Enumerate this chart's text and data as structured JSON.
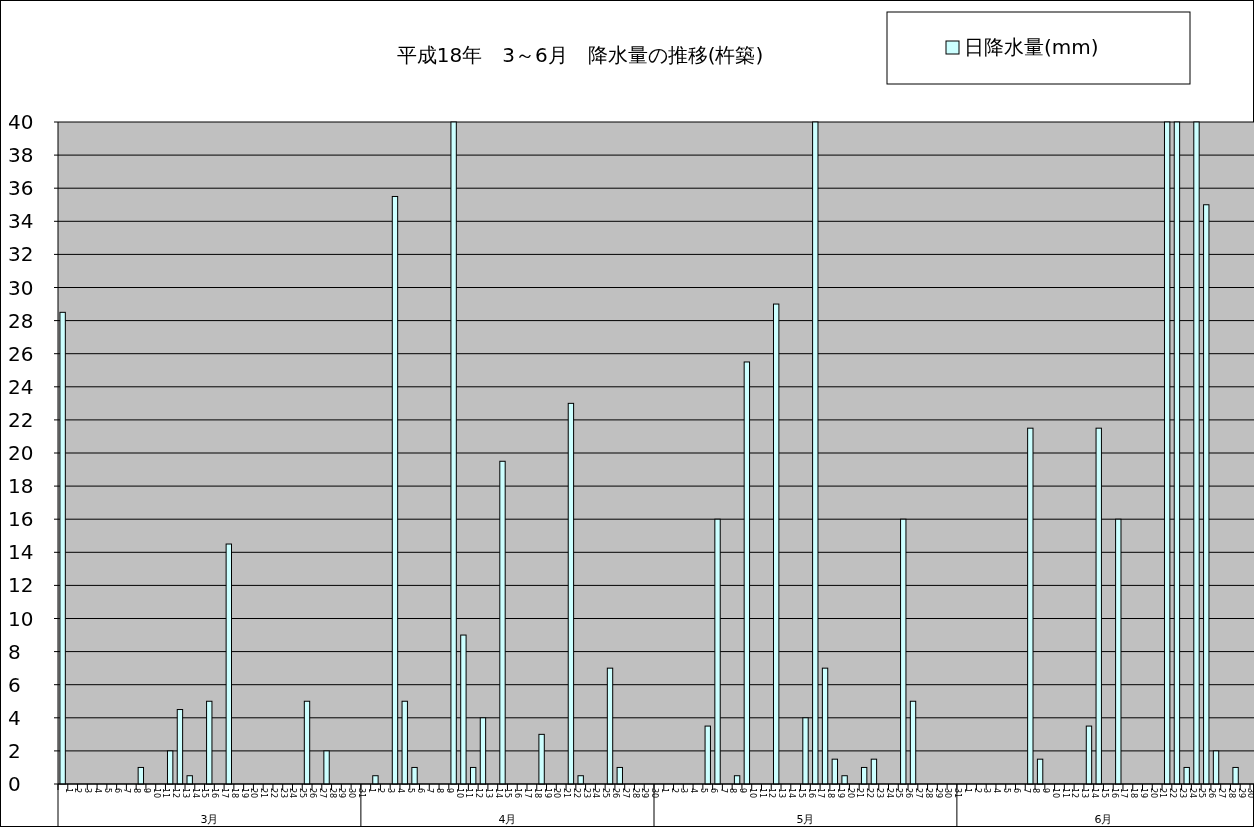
{
  "chart_data": {
    "type": "bar",
    "title": "平成18年　3～6月　降水量の推移(杵築)",
    "categories": [
      "1",
      "2",
      "3",
      "4",
      "5",
      "6",
      "7",
      "8",
      "9",
      "10",
      "11",
      "12",
      "13",
      "14",
      "15",
      "16",
      "17",
      "18",
      "19",
      "20",
      "21",
      "22",
      "23",
      "24",
      "25",
      "26",
      "27",
      "28",
      "29",
      "30",
      "31",
      "1",
      "2",
      "3",
      "4",
      "5",
      "6",
      "7",
      "8",
      "9",
      "10",
      "11",
      "12",
      "13",
      "14",
      "15",
      "16",
      "17",
      "18",
      "19",
      "20",
      "21",
      "22",
      "23",
      "24",
      "25",
      "26",
      "27",
      "28",
      "29",
      "30",
      "1",
      "2",
      "3",
      "4",
      "5",
      "6",
      "7",
      "8",
      "9",
      "10",
      "11",
      "12",
      "13",
      "14",
      "15",
      "16",
      "17",
      "18",
      "19",
      "20",
      "21",
      "22",
      "23",
      "24",
      "25",
      "26",
      "27",
      "28",
      "29",
      "30",
      "31",
      "1",
      "2",
      "3",
      "4",
      "5",
      "6",
      "7",
      "8",
      "9",
      "10",
      "11",
      "12",
      "13",
      "14",
      "15",
      "16",
      "17",
      "18",
      "19",
      "20",
      "21",
      "22",
      "23",
      "24",
      "25",
      "26",
      "27",
      "28",
      "29",
      "30"
    ],
    "series": [
      {
        "name": "日降水量(mm)",
        "color": "#ccffff",
        "values": [
          28.5,
          0,
          0,
          0,
          0,
          0,
          0,
          0,
          1,
          0,
          0,
          2,
          4.5,
          0.5,
          0,
          5,
          0,
          14.5,
          0,
          0,
          0,
          0,
          0,
          0,
          0,
          5,
          0,
          2,
          0,
          0,
          0,
          0,
          0.5,
          0,
          35.5,
          5,
          1,
          0,
          0,
          0,
          40,
          9,
          1,
          4,
          0,
          19.5,
          0,
          0,
          0,
          3,
          0,
          0,
          23,
          0.5,
          0,
          0,
          7,
          1,
          0,
          0,
          0,
          0,
          0,
          0,
          0,
          0,
          3.5,
          16,
          0,
          0.5,
          25.5,
          0,
          0,
          29,
          0,
          0,
          4,
          40,
          7,
          1.5,
          0.5,
          0,
          1,
          1.5,
          0,
          0,
          16,
          5,
          0,
          0,
          0,
          0,
          0,
          0,
          0,
          0,
          0,
          0,
          0,
          21.5,
          1.5,
          0,
          0,
          0,
          0,
          3.5,
          21.5,
          0,
          16,
          0,
          0,
          0,
          0,
          40,
          40,
          1,
          40,
          35,
          2,
          0,
          1,
          0
        ]
      }
    ],
    "annotations": [
      "3月",
      "4月",
      "5月",
      "6月"
    ],
    "ylim": [
      0,
      40
    ],
    "yticks": [
      0,
      2,
      4,
      6,
      8,
      10,
      12,
      14,
      16,
      18,
      20,
      22,
      24,
      26,
      28,
      30,
      32,
      34,
      36,
      38,
      40
    ],
    "grid": "y",
    "legend": "top right"
  }
}
